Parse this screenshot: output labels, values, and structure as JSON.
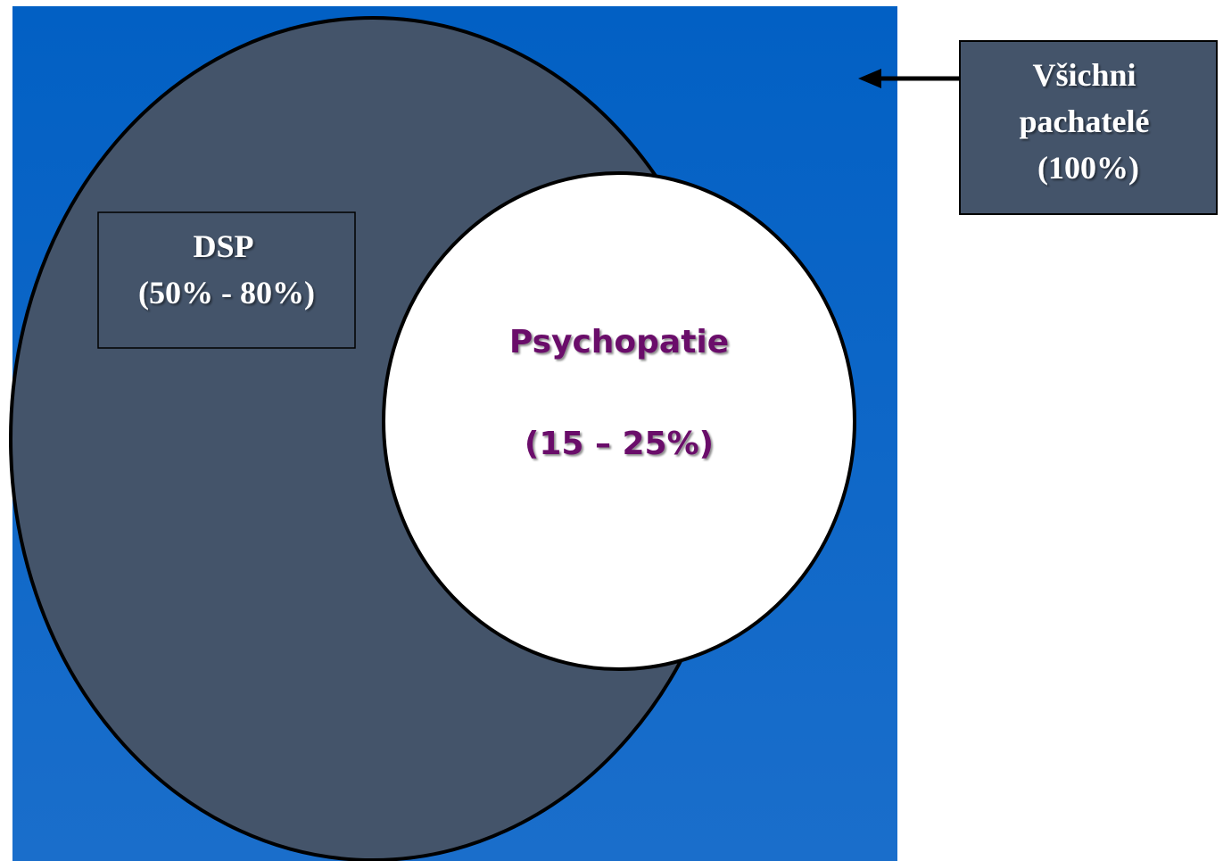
{
  "colors": {
    "universe_top": "#0260c4",
    "universe_bottom": "#1a6ecb",
    "dsp_fill": "#44546a",
    "psychopathy_fill": "#ffffff",
    "psychopathy_text": "#6b0f6b",
    "outline": "#000000",
    "label_text": "#ffffff"
  },
  "all_offenders": {
    "lines": [
      "Všichni",
      "pachatelé",
      "(100%)"
    ],
    "icon": "left-arrow-icon"
  },
  "dsp": {
    "lines": [
      "DSP",
      "(50% - 80%)"
    ]
  },
  "psychopathy": {
    "title": "Psychopatie",
    "range": "(15 – 25%)"
  }
}
